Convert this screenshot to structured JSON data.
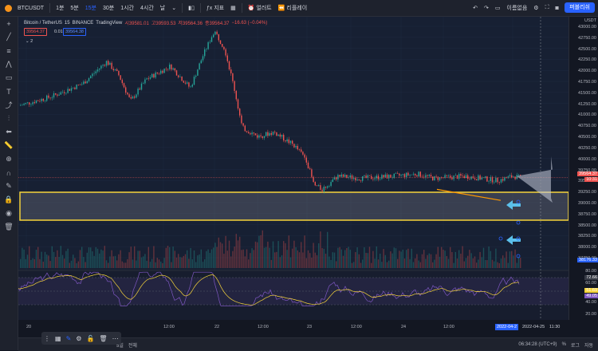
{
  "header": {
    "symbol": "BTCUSDT",
    "intervals": [
      "1분",
      "5분",
      "15분",
      "30분",
      "1시간",
      "4시간",
      "날"
    ],
    "active_interval": "15분",
    "indicators_label": "지표",
    "alert_label": "얼러트",
    "replay_label": "리플레이",
    "layout_name": "이름없음",
    "publish_label": "퍼블리쉬"
  },
  "legend": {
    "pair": "Bitcoin / TetherUS",
    "interval": "15",
    "exchange": "BINANCE",
    "source": "TradingView",
    "open": "시39581.01",
    "high": "고39593.53",
    "low": "저39564.36",
    "close": "종39564.37",
    "change": "−16.63 (−0.04%)",
    "bid": "39564.37",
    "spread": "0.01",
    "ask": "39564.38",
    "indicator_count": "2"
  },
  "price_axis": {
    "currency": "USDT",
    "ticks": [
      "43000.00",
      "42750.00",
      "42500.00",
      "42250.00",
      "42000.00",
      "41750.00",
      "41500.00",
      "41250.00",
      "41000.00",
      "40750.00",
      "40500.00",
      "40250.00",
      "40000.00",
      "39750.00",
      "39500.00",
      "39250.00",
      "39000.00",
      "38750.00",
      "38500.00",
      "38250.00",
      "38000.00",
      "37750.00"
    ],
    "last_price": "39564.37",
    "countdown": "10:31",
    "cursor_price": "38176.33"
  },
  "rsi_axis": {
    "ticks": [
      "80.00",
      "60.00",
      "40.00",
      "20.00"
    ],
    "upper": "72.66",
    "value1": "51.69",
    "value2": "49.05"
  },
  "time_axis": {
    "labels": [
      "20",
      "12:00",
      "22",
      "12:00",
      "23",
      "12:00",
      "24",
      "12:00",
      "2022-04-25"
    ],
    "cursor_date": "2022-04-2",
    "cursor_time": "11:30"
  },
  "bottom_bar": {
    "range": "5일",
    "all": "전체",
    "clock": "06:34:28 (UTC+9)",
    "percent": "%",
    "log": "로그",
    "auto": "자동"
  },
  "colors": {
    "up": "#26a69a",
    "down": "#ef5350",
    "zone": "#f5d33a",
    "trend": "#ff9800",
    "arrow": "#5bc0eb",
    "rsi": "#7e57c2"
  }
}
